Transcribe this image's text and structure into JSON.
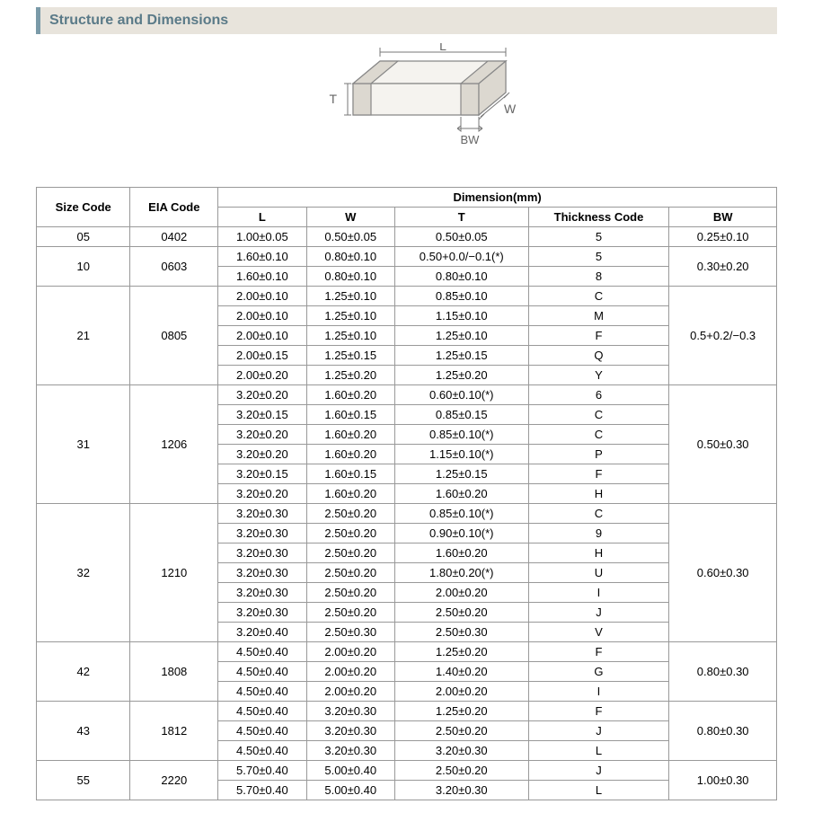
{
  "header": {
    "title": "Structure and Dimensions"
  },
  "diagram": {
    "labels": {
      "L": "L",
      "W": "W",
      "T": "T",
      "BW": "BW"
    },
    "stroke": "#888888",
    "fill": "#f5f3ef",
    "label_color": "#666666",
    "label_fontsize": 14
  },
  "table": {
    "columns": {
      "size_code": "Size Code",
      "eia_code": "EIA Code",
      "dimension_group": "Dimension(mm)",
      "L": "L",
      "W": "W",
      "T": "T",
      "thickness_code": "Thickness Code",
      "BW": "BW"
    },
    "groups": [
      {
        "size_code": "05",
        "eia_code": "0402",
        "bw": "0.25±0.10",
        "rows": [
          {
            "L": "1.00±0.05",
            "W": "0.50±0.05",
            "T": "0.50±0.05",
            "tc": "5"
          }
        ]
      },
      {
        "size_code": "10",
        "eia_code": "0603",
        "bw": "0.30±0.20",
        "rows": [
          {
            "L": "1.60±0.10",
            "W": "0.80±0.10",
            "T": "0.50+0.0/−0.1(*)",
            "tc": "5"
          },
          {
            "L": "1.60±0.10",
            "W": "0.80±0.10",
            "T": "0.80±0.10",
            "tc": "8"
          }
        ]
      },
      {
        "size_code": "21",
        "eia_code": "0805",
        "bw": "0.5+0.2/−0.3",
        "rows": [
          {
            "L": "2.00±0.10",
            "W": "1.25±0.10",
            "T": "0.85±0.10",
            "tc": "C"
          },
          {
            "L": "2.00±0.10",
            "W": "1.25±0.10",
            "T": "1.15±0.10",
            "tc": "M"
          },
          {
            "L": "2.00±0.10",
            "W": "1.25±0.10",
            "T": "1.25±0.10",
            "tc": "F"
          },
          {
            "L": "2.00±0.15",
            "W": "1.25±0.15",
            "T": "1.25±0.15",
            "tc": "Q"
          },
          {
            "L": "2.00±0.20",
            "W": "1.25±0.20",
            "T": "1.25±0.20",
            "tc": "Y"
          }
        ]
      },
      {
        "size_code": "31",
        "eia_code": "1206",
        "bw": "0.50±0.30",
        "rows": [
          {
            "L": "3.20±0.20",
            "W": "1.60±0.20",
            "T": "0.60±0.10(*)",
            "tc": "6"
          },
          {
            "L": "3.20±0.15",
            "W": "1.60±0.15",
            "T": "0.85±0.15",
            "tc": "C"
          },
          {
            "L": "3.20±0.20",
            "W": "1.60±0.20",
            "T": "0.85±0.10(*)",
            "tc": "C"
          },
          {
            "L": "3.20±0.20",
            "W": "1.60±0.20",
            "T": "1.15±0.10(*)",
            "tc": "P"
          },
          {
            "L": "3.20±0.15",
            "W": "1.60±0.15",
            "T": "1.25±0.15",
            "tc": "F"
          },
          {
            "L": "3.20±0.20",
            "W": "1.60±0.20",
            "T": "1.60±0.20",
            "tc": "H"
          }
        ]
      },
      {
        "size_code": "32",
        "eia_code": "1210",
        "bw": "0.60±0.30",
        "rows": [
          {
            "L": "3.20±0.30",
            "W": "2.50±0.20",
            "T": "0.85±0.10(*)",
            "tc": "C"
          },
          {
            "L": "3.20±0.30",
            "W": "2.50±0.20",
            "T": "0.90±0.10(*)",
            "tc": "9"
          },
          {
            "L": "3.20±0.30",
            "W": "2.50±0.20",
            "T": "1.60±0.20",
            "tc": "H"
          },
          {
            "L": "3.20±0.30",
            "W": "2.50±0.20",
            "T": "1.80±0.20(*)",
            "tc": "U"
          },
          {
            "L": "3.20±0.30",
            "W": "2.50±0.20",
            "T": "2.00±0.20",
            "tc": "I"
          },
          {
            "L": "3.20±0.30",
            "W": "2.50±0.20",
            "T": "2.50±0.20",
            "tc": "J"
          },
          {
            "L": "3.20±0.40",
            "W": "2.50±0.30",
            "T": "2.50±0.30",
            "tc": "V"
          }
        ]
      },
      {
        "size_code": "42",
        "eia_code": "1808",
        "bw": "0.80±0.30",
        "rows": [
          {
            "L": "4.50±0.40",
            "W": "2.00±0.20",
            "T": "1.25±0.20",
            "tc": "F"
          },
          {
            "L": "4.50±0.40",
            "W": "2.00±0.20",
            "T": "1.40±0.20",
            "tc": "G"
          },
          {
            "L": "4.50±0.40",
            "W": "2.00±0.20",
            "T": "2.00±0.20",
            "tc": "I"
          }
        ]
      },
      {
        "size_code": "43",
        "eia_code": "1812",
        "bw": "0.80±0.30",
        "rows": [
          {
            "L": "4.50±0.40",
            "W": "3.20±0.30",
            "T": "1.25±0.20",
            "tc": "F"
          },
          {
            "L": "4.50±0.40",
            "W": "3.20±0.30",
            "T": "2.50±0.20",
            "tc": "J"
          },
          {
            "L": "4.50±0.40",
            "W": "3.20±0.30",
            "T": "3.20±0.30",
            "tc": "L"
          }
        ]
      },
      {
        "size_code": "55",
        "eia_code": "2220",
        "bw": "1.00±0.30",
        "rows": [
          {
            "L": "5.70±0.40",
            "W": "5.00±0.40",
            "T": "2.50±0.20",
            "tc": "J"
          },
          {
            "L": "5.70±0.40",
            "W": "5.00±0.40",
            "T": "3.20±0.30",
            "tc": "L"
          }
        ]
      }
    ]
  }
}
